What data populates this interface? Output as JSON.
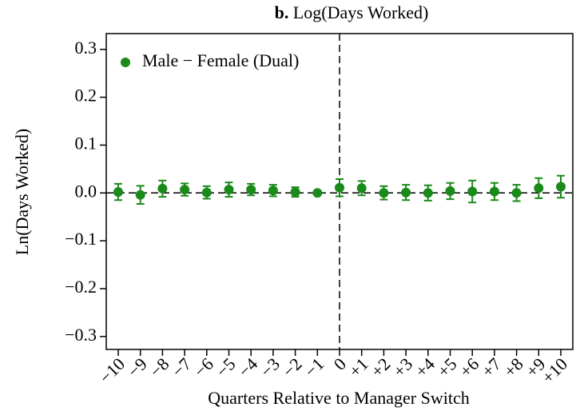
{
  "chart_data": {
    "type": "scatter",
    "title_label": "b.",
    "title": "Log(Days Worked)",
    "x_label": "Quarters Relative to Manager Switch",
    "y_label": "Ln(Days Worked)",
    "categories": [
      "−10",
      "−9",
      "−8",
      "−7",
      "−6",
      "−5",
      "−4",
      "−3",
      "−2",
      "−1",
      "0",
      "+1",
      "+2",
      "+3",
      "+4",
      "+5",
      "+6",
      "+7",
      "+8",
      "+9",
      "+10"
    ],
    "series": [
      {
        "name": "Male − Female (Dual)",
        "color": "#1a8a1a",
        "values": [
          0.002,
          -0.004,
          0.009,
          0.007,
          0.001,
          0.007,
          0.007,
          0.005,
          0.002,
          0.0,
          0.011,
          0.01,
          0.0,
          0.001,
          0.0,
          0.004,
          0.003,
          0.003,
          0.0,
          0.01,
          0.013
        ],
        "errors": [
          0.017,
          0.019,
          0.017,
          0.013,
          0.013,
          0.015,
          0.012,
          0.012,
          0.01,
          0,
          0.018,
          0.015,
          0.014,
          0.016,
          0.016,
          0.017,
          0.023,
          0.018,
          0.017,
          0.021,
          0.023
        ]
      }
    ],
    "ylim": [
      -0.327,
      0.333
    ],
    "yticks": [
      {
        "value": -0.3,
        "label": "−0.3"
      },
      {
        "value": -0.2,
        "label": "−0.2"
      },
      {
        "value": -0.1,
        "label": "−0.1"
      },
      {
        "value": 0,
        "label": "0.0"
      },
      0.1,
      0.2,
      0.3
    ],
    "reference_line_x": "0",
    "reference_line_y": 0,
    "legend": "upper left"
  }
}
